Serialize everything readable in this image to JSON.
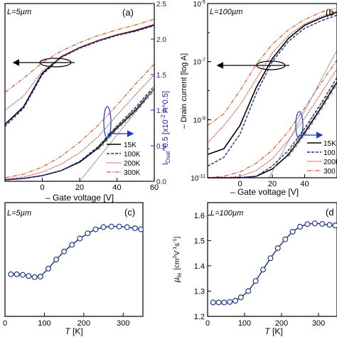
{
  "colors": {
    "axis": "#000000",
    "right_axis": "#1a1a9a",
    "marker": "#1f3b8c",
    "k15": "#000000",
    "k100": "#1f2f8f",
    "k200": "#d12a2a",
    "k300": "#e0522a",
    "tangent": "#888888"
  },
  "chart_data": [
    {
      "panel": "a",
      "type": "line",
      "label": "(a)",
      "length_label": "L=5µm",
      "xlabel": "– Gate voltage  [V]",
      "ylabel": "",
      "y2label": "I_Dsat^0.5  [x10^-2 A^0.5]",
      "y2label_main": "I",
      "y2label_sub": "Dsat",
      "y2label_rest": "^0.5  [x10",
      "y2label_exp": "-2",
      "y2label_end": " A^0.5]",
      "xlim": [
        -20,
        60
      ],
      "xticks": [
        "0",
        "20",
        "40",
        "60"
      ],
      "y2lim": [
        0,
        2.5
      ],
      "y2ticks": [
        "0.0",
        "0.5",
        "1.0",
        "1.5",
        "2.0",
        "2.5"
      ],
      "legend": [
        "15K",
        "100K",
        "200K",
        "300K"
      ],
      "x": [
        -20,
        -10,
        0,
        10,
        20,
        30,
        40,
        50,
        60
      ],
      "series_log": [
        {
          "name": "15K",
          "values": [
            0.8,
            1.05,
            1.52,
            1.75,
            1.88,
            1.98,
            2.06,
            2.12,
            2.2
          ]
        },
        {
          "name": "100K",
          "values": [
            0.77,
            1.03,
            1.5,
            1.74,
            1.87,
            1.97,
            2.05,
            2.11,
            2.19
          ]
        },
        {
          "name": "200K",
          "values": [
            1.0,
            1.2,
            1.55,
            1.74,
            1.88,
            1.98,
            2.06,
            2.13,
            2.21
          ]
        },
        {
          "name": "300K",
          "values": [
            1.25,
            1.45,
            1.67,
            1.83,
            1.95,
            2.05,
            2.13,
            2.2,
            2.28
          ]
        }
      ],
      "series_sqrt": [
        {
          "name": "15K",
          "values": [
            0.02,
            0.04,
            0.08,
            0.15,
            0.27,
            0.47,
            0.75,
            1.0,
            1.3
          ]
        },
        {
          "name": "100K",
          "values": [
            0.02,
            0.04,
            0.08,
            0.15,
            0.28,
            0.49,
            0.78,
            1.04,
            1.34
          ]
        },
        {
          "name": "200K",
          "values": [
            0.03,
            0.06,
            0.13,
            0.24,
            0.4,
            0.63,
            0.93,
            1.22,
            1.5
          ]
        },
        {
          "name": "300K",
          "values": [
            0.05,
            0.1,
            0.2,
            0.35,
            0.55,
            0.79,
            1.07,
            1.37,
            1.65
          ]
        }
      ]
    },
    {
      "panel": "b",
      "type": "line",
      "label": "(b",
      "length_label": "L=100µm",
      "xlabel": "– Gate voltage  [V]",
      "ylabel": "– Drain current  [log A]",
      "ylim_exp": [
        -11,
        -5
      ],
      "yticks": [
        "10^-11",
        "10^-9",
        "10^-7",
        "10^-5"
      ],
      "xlim": [
        -20,
        60
      ],
      "xticks": [
        "0",
        "20",
        "40"
      ],
      "legend": [
        "15K",
        "100",
        "200K",
        "300"
      ],
      "x": [
        -20,
        -10,
        0,
        10,
        20,
        30,
        40,
        50,
        60
      ],
      "series_log": [
        {
          "name": "15K",
          "values": [
            -10.2,
            -10.0,
            -9.2,
            -7.9,
            -6.9,
            -6.2,
            -5.75,
            -5.5,
            -5.3
          ]
        },
        {
          "name": "100K",
          "values": [
            -10.6,
            -10.3,
            -9.5,
            -8.1,
            -7.0,
            -6.3,
            -5.85,
            -5.6,
            -5.4
          ]
        },
        {
          "name": "200K",
          "values": [
            -9.8,
            -9.2,
            -8.5,
            -7.6,
            -6.7,
            -6.1,
            -5.7,
            -5.45,
            -5.25
          ]
        },
        {
          "name": "300K",
          "values": [
            -9.2,
            -8.8,
            -8.0,
            -7.1,
            -6.4,
            -5.9,
            -5.55,
            -5.3,
            -5.15
          ]
        }
      ],
      "series_sqrt": [
        {
          "name": "15K",
          "values": [
            -11.0,
            -11.0,
            -11.0,
            -10.95,
            -10.7,
            -10.2,
            -9.45,
            -8.6,
            -7.7
          ]
        },
        {
          "name": "100K",
          "values": [
            -11.0,
            -11.0,
            -11.0,
            -10.95,
            -10.6,
            -10.05,
            -9.3,
            -8.45,
            -7.55
          ]
        },
        {
          "name": "200K",
          "values": [
            -11.0,
            -11.0,
            -10.95,
            -10.75,
            -10.35,
            -9.7,
            -8.95,
            -8.1,
            -7.25
          ]
        },
        {
          "name": "300K",
          "values": [
            -11.0,
            -10.95,
            -10.8,
            -10.5,
            -10.05,
            -9.4,
            -8.6,
            -7.75,
            -6.95
          ]
        }
      ]
    },
    {
      "panel": "c",
      "type": "line",
      "label": "(c)",
      "length_label": "L=5µm",
      "xlabel_main": "T",
      "xlabel_unit": "  [K]",
      "xlim": [
        0,
        350
      ],
      "xticks": [
        "0",
        "100",
        "200",
        "300"
      ],
      "ylim": [
        0,
        1
      ],
      "x": [
        15,
        30,
        45,
        60,
        75,
        90,
        110,
        130,
        150,
        170,
        190,
        210,
        230,
        250,
        270,
        290,
        310,
        330,
        345
      ],
      "values": [
        0.37,
        0.37,
        0.365,
        0.355,
        0.345,
        0.35,
        0.42,
        0.5,
        0.57,
        0.63,
        0.685,
        0.73,
        0.765,
        0.785,
        0.79,
        0.79,
        0.785,
        0.775,
        0.765
      ]
    },
    {
      "panel": "d",
      "type": "line",
      "label": "(d",
      "length_label": "L=100µm",
      "xlabel_main": "T",
      "xlabel_unit": "  [K]",
      "ylabel_mu": "µ",
      "ylabel_sub": "fe",
      "ylabel_unit": "[cm",
      "ylabel_exp1": "2",
      "ylabel_mid": "V",
      "ylabel_exp2": "-1",
      "ylabel_mid2": "s",
      "ylabel_exp3": "-1",
      "ylabel_end": "]",
      "xlim": [
        0,
        350
      ],
      "xticks": [
        "0",
        "100",
        "200",
        "300"
      ],
      "ylim": [
        1.2,
        1.65
      ],
      "yticks": [
        "1.2",
        "1.3",
        "1.4",
        "1.5",
        "1.6"
      ],
      "x": [
        15,
        30,
        45,
        60,
        75,
        90,
        110,
        130,
        150,
        170,
        190,
        210,
        230,
        250,
        270,
        290,
        310,
        330,
        345
      ],
      "values": [
        1.255,
        1.255,
        1.255,
        1.257,
        1.262,
        1.275,
        1.3,
        1.34,
        1.385,
        1.43,
        1.47,
        1.505,
        1.535,
        1.555,
        1.565,
        1.568,
        1.566,
        1.562,
        1.56
      ]
    }
  ]
}
